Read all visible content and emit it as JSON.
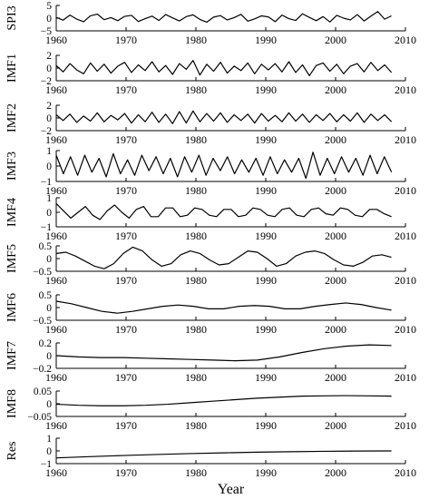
{
  "chart_data": {
    "type": "line",
    "xlabel": "Year",
    "xlim": [
      1960,
      2010
    ],
    "x_ticks": [
      "1960",
      "1970",
      "1980",
      "1990",
      "2000",
      "2010"
    ],
    "x_start": 1960,
    "x_end": 2008,
    "panels": [
      {
        "ylabel": "SPI3",
        "ylim": [
          -5,
          5
        ],
        "y_ticks": [
          "5",
          "0",
          "−5"
        ],
        "values": [
          0.3,
          -0.8,
          1.2,
          -0.4,
          -1.4,
          0.9,
          1.6,
          -0.6,
          0.2,
          -1.0,
          0.7,
          1.1,
          -1.3,
          -0.2,
          0.8,
          -0.9,
          1.4,
          0.1,
          -1.1,
          0.6,
          1.3,
          -0.5,
          -1.6,
          0.4,
          1.0,
          -0.7,
          0.2,
          1.5,
          -1.2,
          -0.3,
          0.9,
          0.5,
          -1.4,
          1.2,
          -0.2,
          -0.9,
          1.7,
          0.3,
          -1.0,
          0.6,
          -1.5,
          1.1,
          0.0,
          -0.7,
          1.4,
          -1.1,
          0.8,
          2.6,
          -0.4,
          0.9
        ]
      },
      {
        "ylabel": "IMF1",
        "ylim": [
          -2,
          2
        ],
        "y_ticks": [
          "2",
          "0",
          "−2"
        ],
        "values": [
          0.4,
          -0.6,
          0.7,
          -0.3,
          -0.9,
          0.8,
          -0.5,
          0.6,
          -0.8,
          0.3,
          0.9,
          -0.7,
          0.5,
          -0.4,
          1.0,
          -0.6,
          0.4,
          -1.0,
          0.7,
          -0.2,
          1.2,
          -1.1,
          0.6,
          -0.5,
          0.9,
          -0.8,
          0.3,
          -0.4,
          0.8,
          -0.9,
          0.6,
          -0.3,
          0.7,
          -0.6,
          1.0,
          -0.7,
          0.5,
          -1.2,
          0.4,
          0.8,
          -0.5,
          0.6,
          -0.9,
          0.3,
          0.7,
          -0.6,
          0.9,
          -0.4,
          0.5,
          -0.7
        ]
      },
      {
        "ylabel": "IMF2",
        "ylim": [
          -2,
          2
        ],
        "y_ticks": [
          "2",
          "0",
          "−2"
        ],
        "values": [
          0.5,
          -0.4,
          0.6,
          -0.7,
          0.3,
          -0.5,
          0.8,
          -0.6,
          0.4,
          -0.3,
          0.7,
          -0.8,
          0.5,
          -0.6,
          0.9,
          -0.7,
          0.6,
          -0.9,
          1.0,
          -0.8,
          1.1,
          -0.6,
          0.7,
          -0.5,
          0.8,
          -0.7,
          0.5,
          -0.4,
          0.6,
          -0.8,
          0.7,
          -0.5,
          0.4,
          -0.6,
          0.8,
          -0.5,
          0.6,
          -0.7,
          0.5,
          -0.4,
          0.7,
          -0.6,
          0.5,
          -0.5,
          0.8,
          -0.7,
          0.6,
          -0.4,
          0.5,
          -0.6
        ]
      },
      {
        "ylabel": "IMF3",
        "ylim": [
          -1,
          1
        ],
        "y_ticks": [
          "1",
          "0",
          "−1"
        ],
        "values": [
          0.7,
          -0.5,
          0.6,
          -0.6,
          0.7,
          -0.4,
          0.5,
          -0.7,
          0.8,
          -0.5,
          0.4,
          -0.6,
          0.7,
          -0.3,
          0.6,
          -0.5,
          0.5,
          -0.7,
          0.6,
          -0.4,
          0.7,
          -0.6,
          0.5,
          -0.3,
          0.6,
          -0.5,
          0.4,
          -0.4,
          0.5,
          -0.6,
          0.6,
          -0.5,
          0.4,
          -0.4,
          0.5,
          -0.8,
          0.9,
          -0.6,
          0.5,
          -0.5,
          0.6,
          -0.4,
          0.5,
          -0.6,
          0.7,
          -0.5,
          0.6,
          -0.4
        ]
      },
      {
        "ylabel": "IMF4",
        "ylim": [
          -1,
          1
        ],
        "y_ticks": [
          "1",
          "0",
          "−1"
        ],
        "values": [
          0.6,
          0.1,
          -0.4,
          0.0,
          0.4,
          -0.2,
          -0.5,
          0.1,
          0.5,
          0.0,
          -0.4,
          0.2,
          0.4,
          -0.3,
          -0.3,
          0.3,
          0.3,
          -0.3,
          -0.2,
          0.3,
          0.2,
          -0.2,
          -0.3,
          0.2,
          0.2,
          -0.3,
          -0.2,
          0.3,
          0.2,
          -0.2,
          -0.3,
          0.2,
          0.3,
          -0.2,
          -0.3,
          0.2,
          0.3,
          -0.1,
          -0.2,
          0.3,
          0.2,
          -0.2,
          -0.3,
          0.2,
          0.2,
          -0.1,
          -0.3
        ]
      },
      {
        "ylabel": "IMF5",
        "ylim": [
          -0.5,
          0.5
        ],
        "y_ticks": [
          "0.5",
          "0",
          "−0.5"
        ],
        "values": [
          0.2,
          0.25,
          0.1,
          -0.1,
          -0.3,
          -0.4,
          -0.2,
          0.2,
          0.45,
          0.3,
          -0.05,
          -0.3,
          -0.2,
          0.15,
          0.3,
          0.2,
          -0.05,
          -0.25,
          -0.2,
          0.05,
          0.3,
          0.25,
          0.0,
          -0.3,
          -0.2,
          0.1,
          0.25,
          0.3,
          0.2,
          -0.05,
          -0.25,
          -0.3,
          -0.15,
          0.1,
          0.15,
          0.05
        ]
      },
      {
        "ylabel": "IMF6",
        "ylim": [
          -0.5,
          0.5
        ],
        "y_ticks": [
          "0.5",
          "0",
          "−0.5"
        ],
        "values": [
          0.25,
          0.15,
          0.0,
          -0.15,
          -0.22,
          -0.15,
          -0.05,
          0.05,
          0.1,
          0.05,
          -0.05,
          -0.05,
          0.05,
          0.08,
          0.05,
          -0.05,
          -0.05,
          0.05,
          0.12,
          0.18,
          0.12,
          0.0,
          -0.1
        ]
      },
      {
        "ylabel": "IMF7",
        "ylim": [
          -0.2,
          0.2
        ],
        "y_ticks": [
          "0.2",
          "0",
          "−0.2"
        ],
        "values": [
          0.0,
          -0.02,
          -0.03,
          -0.03,
          -0.04,
          -0.05,
          -0.06,
          -0.07,
          -0.08,
          -0.07,
          -0.02,
          0.05,
          0.11,
          0.15,
          0.17,
          0.16
        ]
      },
      {
        "ylabel": "IMF8",
        "ylim": [
          -0.05,
          0.05
        ],
        "y_ticks": [
          "0.05",
          "0",
          "−0.05"
        ],
        "values": [
          -0.002,
          -0.006,
          -0.008,
          -0.008,
          -0.006,
          -0.002,
          0.004,
          0.01,
          0.016,
          0.022,
          0.026,
          0.03,
          0.031,
          0.032,
          0.031,
          0.03
        ]
      },
      {
        "ylabel": "Res",
        "ylim": [
          -1,
          1
        ],
        "y_ticks": [
          "1",
          "0",
          "−1"
        ],
        "values": [
          -0.55,
          -0.45,
          -0.36,
          -0.28,
          -0.21,
          -0.15,
          -0.1,
          -0.06,
          -0.03,
          -0.01,
          0.0
        ]
      }
    ]
  }
}
